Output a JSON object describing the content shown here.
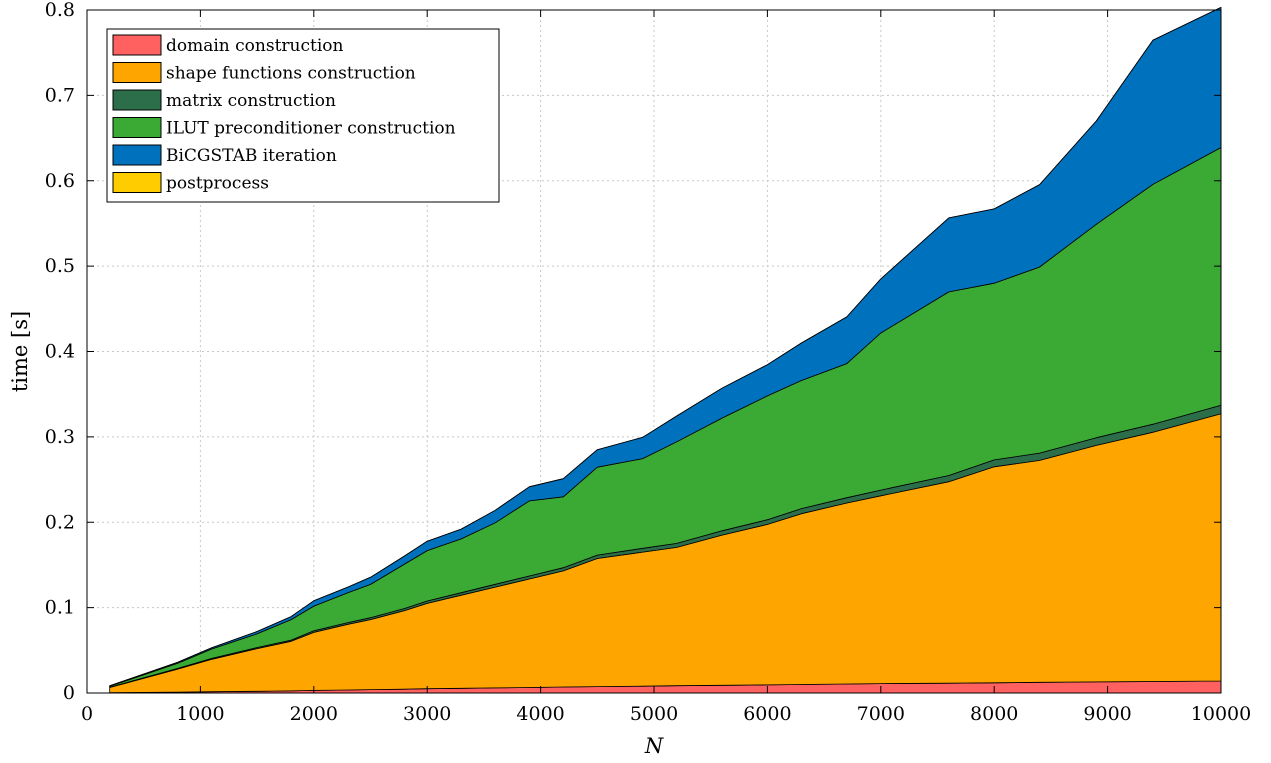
{
  "chart_data": {
    "type": "area",
    "stacked": true,
    "xlabel": "N",
    "ylabel": "time [s]",
    "xlim": [
      0,
      10000
    ],
    "ylim": [
      0,
      0.8
    ],
    "xticks": [
      0,
      1000,
      2000,
      3000,
      4000,
      5000,
      6000,
      7000,
      8000,
      9000,
      10000
    ],
    "yticks": [
      0,
      0.1,
      0.2,
      0.3,
      0.4,
      0.5,
      0.6,
      0.7,
      0.8
    ],
    "xtick_labels": [
      "0",
      "1000",
      "2000",
      "3000",
      "4000",
      "5000",
      "6000",
      "7000",
      "8000",
      "9000",
      "10000"
    ],
    "ytick_labels": [
      "0",
      "0.1",
      "0.2",
      "0.3",
      "0.4",
      "0.5",
      "0.6",
      "0.7",
      "0.8"
    ],
    "grid": true,
    "legend_position": "top-left",
    "x": [
      200,
      800,
      1100,
      1500,
      1800,
      2000,
      2300,
      2500,
      2800,
      3000,
      3300,
      3600,
      3900,
      4200,
      4500,
      4900,
      5200,
      5600,
      6000,
      6300,
      6700,
      7000,
      7600,
      8000,
      8400,
      8900,
      9400,
      10000
    ],
    "series": [
      {
        "name": "domain construction",
        "color": "#ff6161",
        "values": [
          0.0005,
          0.001,
          0.0015,
          0.002,
          0.0025,
          0.003,
          0.0035,
          0.004,
          0.0045,
          0.005,
          0.0055,
          0.006,
          0.0065,
          0.007,
          0.0075,
          0.008,
          0.0085,
          0.009,
          0.0095,
          0.01,
          0.0105,
          0.011,
          0.0115,
          0.012,
          0.0125,
          0.013,
          0.0135,
          0.014
        ]
      },
      {
        "name": "shape functions construction",
        "color": "#ffa500",
        "values": [
          0.006,
          0.027,
          0.038,
          0.05,
          0.058,
          0.068,
          0.077,
          0.082,
          0.092,
          0.1,
          0.109,
          0.118,
          0.127,
          0.136,
          0.15,
          0.157,
          0.162,
          0.176,
          0.188,
          0.2,
          0.212,
          0.22,
          0.236,
          0.253,
          0.26,
          0.277,
          0.292,
          0.313
        ]
      },
      {
        "name": "matrix construction",
        "color": "#2c6e49",
        "values": [
          0.0003,
          0.0008,
          0.001,
          0.0013,
          0.0015,
          0.0018,
          0.002,
          0.0022,
          0.0025,
          0.0028,
          0.003,
          0.0033,
          0.0035,
          0.0038,
          0.004,
          0.0045,
          0.0047,
          0.005,
          0.0055,
          0.006,
          0.0063,
          0.0067,
          0.0073,
          0.008,
          0.0085,
          0.009,
          0.0093,
          0.01
        ]
      },
      {
        "name": "ILUT preconditioner construction",
        "color": "#3aaa35",
        "values": [
          0.001,
          0.006,
          0.011,
          0.016,
          0.024,
          0.029,
          0.035,
          0.039,
          0.052,
          0.059,
          0.063,
          0.072,
          0.088,
          0.083,
          0.103,
          0.105,
          0.119,
          0.132,
          0.145,
          0.15,
          0.157,
          0.184,
          0.215,
          0.207,
          0.218,
          0.25,
          0.281,
          0.302
        ]
      },
      {
        "name": "BiCGSTAB iteration",
        "color": "#0072bd",
        "values": [
          0.0007,
          0.0012,
          0.0015,
          0.0027,
          0.0035,
          0.0062,
          0.0065,
          0.0083,
          0.0095,
          0.011,
          0.0115,
          0.0147,
          0.0165,
          0.0212,
          0.0205,
          0.025,
          0.0303,
          0.035,
          0.0365,
          0.044,
          0.0547,
          0.0633,
          0.0867,
          0.087,
          0.0965,
          0.121,
          0.169,
          0.164
        ]
      },
      {
        "name": "postprocess",
        "color": "#ffcc00",
        "values": [
          0,
          0,
          0,
          0,
          0,
          0,
          0,
          0,
          0,
          0,
          0,
          0,
          0,
          0,
          0,
          0,
          0,
          0,
          0,
          0,
          0,
          0,
          0,
          0,
          0,
          0,
          0,
          0
        ]
      }
    ]
  }
}
